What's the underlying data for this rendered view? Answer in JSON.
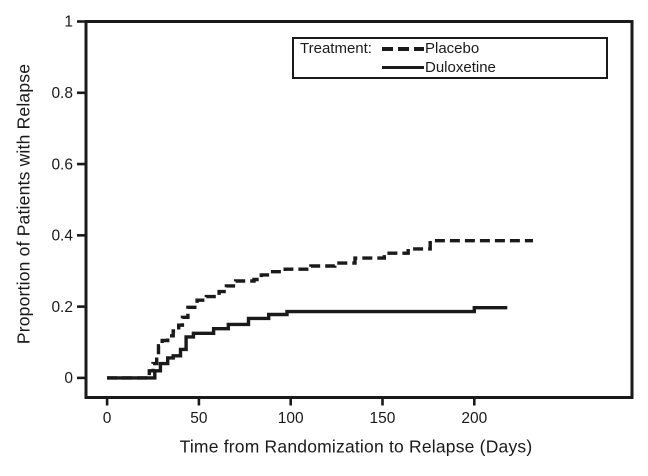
{
  "figure": {
    "background": "#ffffff",
    "ink": "#1a1a1a"
  },
  "chart_data": {
    "type": "line",
    "subtype": "kaplan-meier-step",
    "title": "",
    "xlabel": "Time from Randomization to Relapse (Days)",
    "ylabel": "Proportion of Patients with Relapse",
    "xlim": [
      -11.5,
      285.9
    ],
    "ylim": [
      -0.055,
      1.0
    ],
    "grid": false,
    "x_ticks": [
      {
        "v": 0,
        "label": "0"
      },
      {
        "v": 50,
        "label": "50"
      },
      {
        "v": 100,
        "label": "100"
      },
      {
        "v": 150,
        "label": "150"
      },
      {
        "v": 200,
        "label": "200"
      }
    ],
    "y_ticks": [
      {
        "v": 0,
        "label": "0"
      },
      {
        "v": 0.2,
        "label": "0.2"
      },
      {
        "v": 0.4,
        "label": "0.4"
      },
      {
        "v": 0.6,
        "label": "0.6"
      },
      {
        "v": 0.8,
        "label": "0.8"
      },
      {
        "v": 1,
        "label": "1"
      }
    ],
    "legend": {
      "position": "top-right-inside",
      "title": "Treatment:",
      "entries": [
        {
          "label": "Placebo",
          "line_style": "dashed"
        },
        {
          "label": "Duloxetine",
          "line_style": "solid"
        }
      ]
    },
    "series": [
      {
        "name": "Placebo",
        "line_style": "dashed",
        "color": "#1a1a1a",
        "points": [
          [
            0,
            0
          ],
          [
            22,
            0
          ],
          [
            23,
            0.02
          ],
          [
            25,
            0.04
          ],
          [
            27,
            0.065
          ],
          [
            28,
            0.09
          ],
          [
            30,
            0.105
          ],
          [
            33,
            0.118
          ],
          [
            36,
            0.132
          ],
          [
            39,
            0.148
          ],
          [
            41,
            0.17
          ],
          [
            44,
            0.198
          ],
          [
            49,
            0.218
          ],
          [
            54,
            0.228
          ],
          [
            61,
            0.242
          ],
          [
            65,
            0.258
          ],
          [
            70,
            0.272
          ],
          [
            80,
            0.276
          ],
          [
            84,
            0.289
          ],
          [
            89,
            0.298
          ],
          [
            97,
            0.305
          ],
          [
            111,
            0.314
          ],
          [
            124,
            0.322
          ],
          [
            135,
            0.336
          ],
          [
            151,
            0.35
          ],
          [
            164,
            0.362
          ],
          [
            176,
            0.385
          ],
          [
            232,
            0.385
          ]
        ]
      },
      {
        "name": "Duloxetine",
        "line_style": "solid",
        "color": "#1a1a1a",
        "points": [
          [
            0,
            0
          ],
          [
            24,
            0
          ],
          [
            26,
            0.02
          ],
          [
            29,
            0.04
          ],
          [
            33,
            0.056
          ],
          [
            36,
            0.062
          ],
          [
            40,
            0.08
          ],
          [
            43,
            0.115
          ],
          [
            47,
            0.125
          ],
          [
            58,
            0.138
          ],
          [
            66,
            0.15
          ],
          [
            77,
            0.167
          ],
          [
            88,
            0.178
          ],
          [
            98,
            0.186
          ],
          [
            200,
            0.197
          ],
          [
            218,
            0.197
          ]
        ]
      }
    ]
  }
}
